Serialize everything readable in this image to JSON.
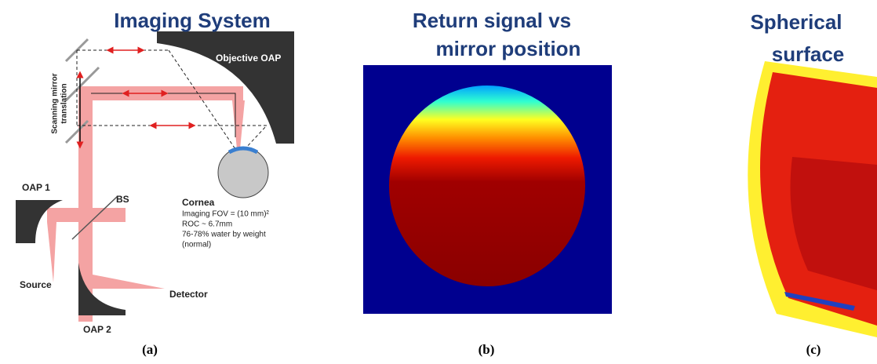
{
  "panels": [
    {
      "title": [
        "Imaging System"
      ],
      "caption": "(a)",
      "labels": {
        "objective": "Objective OAP",
        "scan": [
          "Scanning mirror",
          "translation"
        ],
        "oap1": "OAP 1",
        "bs": "BS",
        "cornea": "Cornea",
        "cornea_notes": [
          "Imaging FOV = (10 mm)²",
          "ROC ~ 6.7mm",
          "76-78% water by weight",
          "(normal)"
        ],
        "source": "Source",
        "detector": "Detector",
        "oap2": "OAP 2"
      }
    },
    {
      "title": [
        "Return signal vs",
        "mirror position"
      ],
      "caption": "(b)"
    },
    {
      "title": [
        "Spherical",
        "surface"
      ],
      "caption": "(c)"
    }
  ]
}
